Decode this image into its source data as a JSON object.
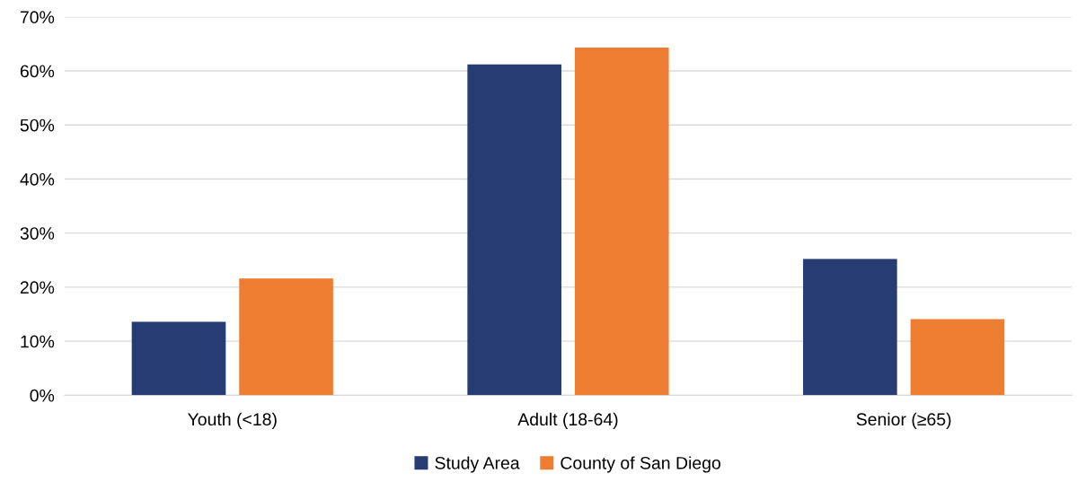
{
  "chart_data": {
    "type": "bar",
    "categories": [
      "Youth (<18)",
      "Adult (18-64)",
      "Senior (≥65)"
    ],
    "series": [
      {
        "name": "Study Area",
        "color": "#283c74",
        "values": [
          13.6,
          61.2,
          25.2
        ]
      },
      {
        "name": "County of San Diego",
        "color": "#ed7d31",
        "values": [
          21.6,
          64.3,
          14.1
        ]
      }
    ],
    "ylim": [
      0,
      70
    ],
    "yticks": [
      {
        "value": 0,
        "label": "0%"
      },
      {
        "value": 10,
        "label": "10%"
      },
      {
        "value": 20,
        "label": "20%"
      },
      {
        "value": 30,
        "label": "30%"
      },
      {
        "value": 40,
        "label": "40%"
      },
      {
        "value": 50,
        "label": "50%"
      },
      {
        "value": 60,
        "label": "60%"
      },
      {
        "value": 70,
        "label": "70%"
      }
    ],
    "grid": "y",
    "legend": "bottom"
  }
}
